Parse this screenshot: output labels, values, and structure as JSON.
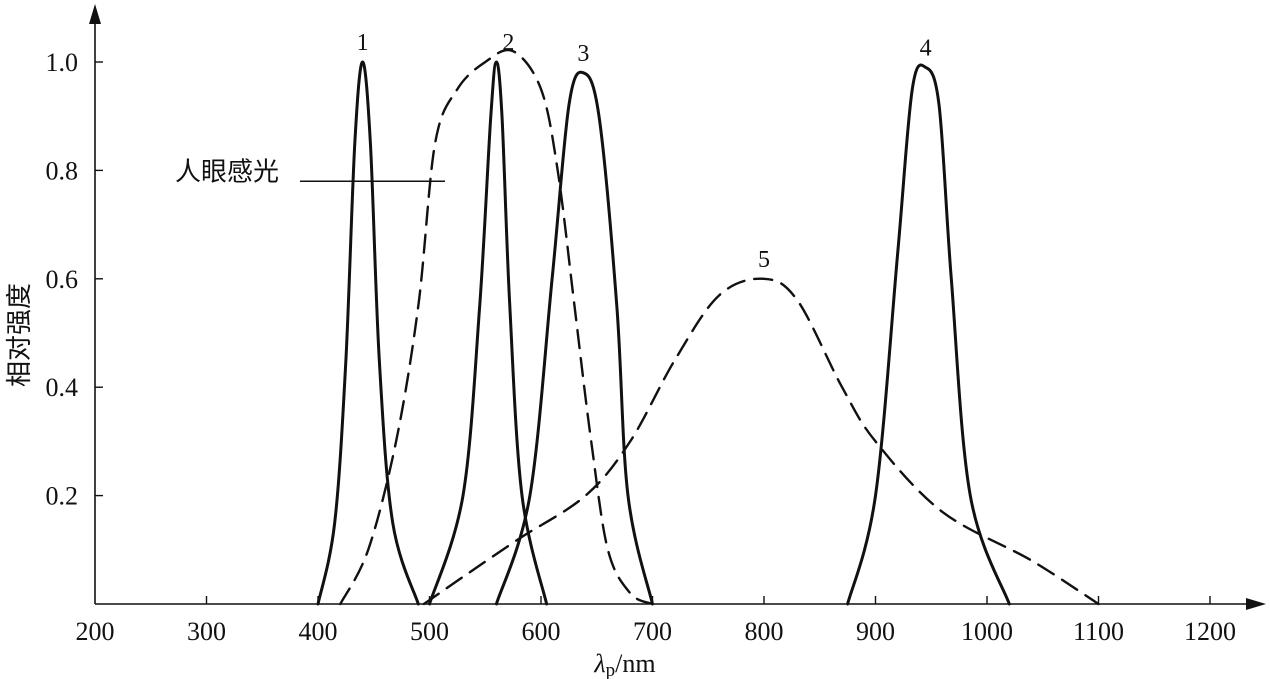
{
  "chart_data": {
    "type": "line",
    "title": "",
    "xlabel": "λp/nm",
    "xlabel_main": "λ",
    "xlabel_sub": "p",
    "xlabel_unit": "/nm",
    "ylabel": "相对强度",
    "xlim": [
      200,
      1200
    ],
    "ylim": [
      0,
      1.0
    ],
    "x_ticks": [
      200,
      300,
      400,
      500,
      600,
      700,
      800,
      900,
      1000,
      1100,
      1200
    ],
    "x_tick_labels": [
      "200",
      "300",
      "400",
      "500",
      "600",
      "700",
      "800",
      "900",
      "1000",
      "1100",
      "1200"
    ],
    "y_ticks": [
      0.2,
      0.4,
      0.6,
      0.8,
      1.0
    ],
    "y_tick_labels": [
      "0.2",
      "0.4",
      "0.6",
      "0.8",
      "1.0"
    ],
    "grid": false,
    "annotation": "人眼感光",
    "series": [
      {
        "name": "1",
        "style": "solid",
        "points": [
          [
            400,
            0.0
          ],
          [
            415,
            0.15
          ],
          [
            425,
            0.45
          ],
          [
            433,
            0.85
          ],
          [
            440,
            1.0
          ],
          [
            447,
            0.85
          ],
          [
            455,
            0.45
          ],
          [
            467,
            0.15
          ],
          [
            490,
            0.0
          ]
        ]
      },
      {
        "name": "2",
        "style": "solid",
        "points": [
          [
            500,
            0.0
          ],
          [
            530,
            0.2
          ],
          [
            545,
            0.55
          ],
          [
            555,
            0.9
          ],
          [
            560,
            1.0
          ],
          [
            565,
            0.9
          ],
          [
            572,
            0.55
          ],
          [
            583,
            0.2
          ],
          [
            605,
            0.0
          ]
        ]
      },
      {
        "name": "3",
        "style": "solid",
        "points": [
          [
            560,
            0.0
          ],
          [
            590,
            0.2
          ],
          [
            610,
            0.6
          ],
          [
            625,
            0.92
          ],
          [
            638,
            0.98
          ],
          [
            652,
            0.9
          ],
          [
            668,
            0.55
          ],
          [
            678,
            0.2
          ],
          [
            700,
            0.0
          ]
        ]
      },
      {
        "name": "4",
        "style": "solid",
        "points": [
          [
            875,
            0.0
          ],
          [
            900,
            0.2
          ],
          [
            920,
            0.65
          ],
          [
            933,
            0.95
          ],
          [
            945,
            0.99
          ],
          [
            957,
            0.92
          ],
          [
            968,
            0.6
          ],
          [
            985,
            0.2
          ],
          [
            1020,
            0.0
          ]
        ]
      },
      {
        "name": "5",
        "style": "dashed",
        "points": [
          [
            495,
            0.0
          ],
          [
            530,
            0.05
          ],
          [
            580,
            0.12
          ],
          [
            640,
            0.2
          ],
          [
            680,
            0.3
          ],
          [
            720,
            0.45
          ],
          [
            760,
            0.57
          ],
          [
            800,
            0.6
          ],
          [
            830,
            0.56
          ],
          [
            870,
            0.4
          ],
          [
            900,
            0.3
          ],
          [
            960,
            0.17
          ],
          [
            1040,
            0.08
          ],
          [
            1100,
            0.0
          ]
        ]
      },
      {
        "name": "人眼感光",
        "style": "dashed",
        "points": [
          [
            420,
            0.0
          ],
          [
            445,
            0.1
          ],
          [
            470,
            0.3
          ],
          [
            490,
            0.55
          ],
          [
            505,
            0.85
          ],
          [
            525,
            0.95
          ],
          [
            550,
            1.0
          ],
          [
            575,
            1.02
          ],
          [
            600,
            0.95
          ],
          [
            615,
            0.8
          ],
          [
            630,
            0.55
          ],
          [
            645,
            0.3
          ],
          [
            660,
            0.1
          ],
          [
            680,
            0.02
          ],
          [
            700,
            0.0
          ]
        ]
      }
    ]
  }
}
